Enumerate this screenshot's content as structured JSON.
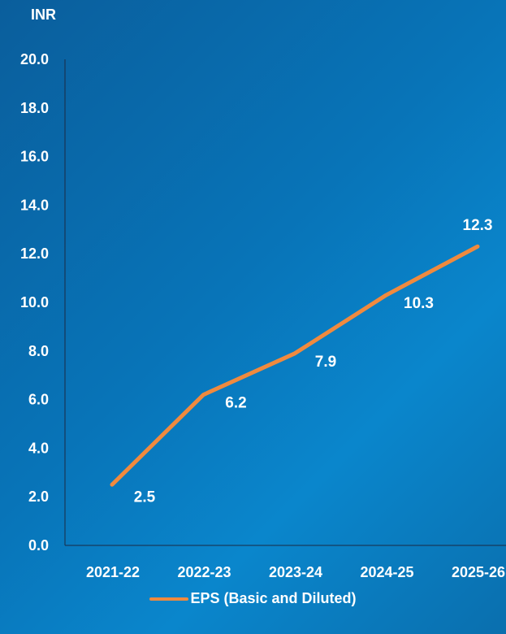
{
  "chart_data": {
    "type": "line",
    "unit_label": "INR",
    "categories": [
      "2021-22",
      "2022-23",
      "2023-24",
      "2024-25",
      "2025-26"
    ],
    "series": [
      {
        "name": "EPS (Basic and Diluted)",
        "values": [
          2.5,
          6.2,
          7.9,
          10.3,
          12.3
        ],
        "color": "#f08a3e"
      }
    ],
    "data_labels": [
      "2.5",
      "6.2",
      "7.9",
      "10.3",
      "12.3"
    ],
    "yticks": [
      "0.0",
      "2.0",
      "4.0",
      "6.0",
      "8.0",
      "10.0",
      "12.0",
      "14.0",
      "16.0",
      "18.0",
      "20.0"
    ],
    "ylim": [
      0,
      20
    ],
    "grid": false,
    "legend_position": "bottom-center"
  },
  "colors": {
    "text": "#ffffff",
    "axis": "#1a2a44",
    "line": "#f08a3e"
  }
}
